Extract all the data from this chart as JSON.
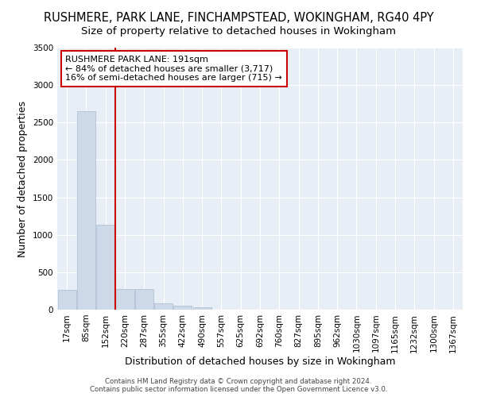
{
  "title": "RUSHMERE, PARK LANE, FINCHAMPSTEAD, WOKINGHAM, RG40 4PY",
  "subtitle": "Size of property relative to detached houses in Wokingham",
  "xlabel": "Distribution of detached houses by size in Wokingham",
  "ylabel": "Number of detached properties",
  "categories": [
    "17sqm",
    "85sqm",
    "152sqm",
    "220sqm",
    "287sqm",
    "355sqm",
    "422sqm",
    "490sqm",
    "557sqm",
    "625sqm",
    "692sqm",
    "760sqm",
    "827sqm",
    "895sqm",
    "962sqm",
    "1030sqm",
    "1097sqm",
    "1165sqm",
    "1232sqm",
    "1300sqm",
    "1367sqm"
  ],
  "values": [
    270,
    2650,
    1140,
    280,
    280,
    90,
    50,
    35,
    0,
    0,
    0,
    0,
    0,
    0,
    0,
    0,
    0,
    0,
    0,
    0,
    0
  ],
  "bar_color": "#cdd8e8",
  "bar_edge_color": "#aabbd0",
  "vline_color": "#cc0000",
  "vline_x_index": 2.5,
  "annotation_text": "RUSHMERE PARK LANE: 191sqm\n← 84% of detached houses are smaller (3,717)\n16% of semi-detached houses are larger (715) →",
  "annotation_box_facecolor": "#ffffff",
  "annotation_box_edgecolor": "#cc0000",
  "ylim": [
    0,
    3500
  ],
  "yticks": [
    0,
    500,
    1000,
    1500,
    2000,
    2500,
    3000,
    3500
  ],
  "title_fontsize": 10.5,
  "subtitle_fontsize": 9.5,
  "axis_label_fontsize": 9,
  "tick_fontsize": 7.5,
  "footer_text": "Contains HM Land Registry data © Crown copyright and database right 2024.\nContains public sector information licensed under the Open Government Licence v3.0.",
  "fig_bg_color": "#ffffff",
  "plot_bg_color": "#e8eef5",
  "grid_color": "#ffffff"
}
